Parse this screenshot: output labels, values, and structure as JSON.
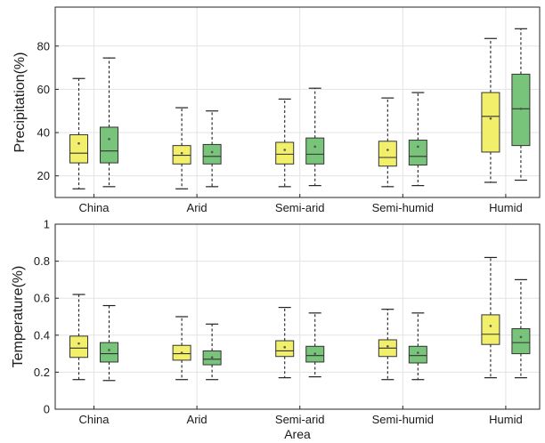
{
  "chart_data": [
    {
      "type": "box",
      "ylabel": "Precipitation(%)",
      "xlabel": "",
      "ylim": [
        10,
        98
      ],
      "yticks": [
        20,
        40,
        60,
        80
      ],
      "grid": true,
      "categories": [
        "China",
        "Arid",
        "Semi-arid",
        "Semi-humid",
        "Humid"
      ],
      "series": [
        {
          "color": "#f2ef6b",
          "boxes": [
            {
              "min": 14,
              "q1": 26,
              "median": 30.5,
              "q3": 39,
              "max": 65,
              "mean": 35
            },
            {
              "min": 14,
              "q1": 25.5,
              "median": 29.5,
              "q3": 34,
              "max": 51.5,
              "mean": 30.5
            },
            {
              "min": 15,
              "q1": 25.5,
              "median": 30,
              "q3": 35.5,
              "max": 55.5,
              "mean": 32
            },
            {
              "min": 15,
              "q1": 24.5,
              "median": 28.5,
              "q3": 36,
              "max": 56,
              "mean": 32
            },
            {
              "min": 17,
              "q1": 31,
              "median": 47.5,
              "q3": 58.5,
              "max": 83.5,
              "mean": 46.5
            }
          ]
        },
        {
          "color": "#78c47a",
          "boxes": [
            {
              "min": 15,
              "q1": 26,
              "median": 31.5,
              "q3": 42.5,
              "max": 74.5,
              "mean": 37
            },
            {
              "min": 15,
              "q1": 25.5,
              "median": 29,
              "q3": 34.5,
              "max": 50,
              "mean": 31
            },
            {
              "min": 15.5,
              "q1": 25.5,
              "median": 30,
              "q3": 37.5,
              "max": 60.5,
              "mean": 33.5
            },
            {
              "min": 15.5,
              "q1": 25,
              "median": 29,
              "q3": 36.5,
              "max": 58.5,
              "mean": 33.5
            },
            {
              "min": 18,
              "q1": 34,
              "median": 51,
              "q3": 67,
              "max": 88,
              "mean": 51
            }
          ]
        }
      ]
    },
    {
      "type": "box",
      "ylabel": "Temperature(%)",
      "xlabel": "Area",
      "ylim": [
        0,
        1
      ],
      "yticks": [
        0,
        0.2,
        0.4,
        0.6,
        0.8,
        1
      ],
      "grid": true,
      "categories": [
        "China",
        "Arid",
        "Semi-arid",
        "Semi-humid",
        "Humid"
      ],
      "series": [
        {
          "color": "#f2ef6b",
          "boxes": [
            {
              "min": 0.16,
              "q1": 0.28,
              "median": 0.33,
              "q3": 0.395,
              "max": 0.62,
              "mean": 0.355
            },
            {
              "min": 0.16,
              "q1": 0.265,
              "median": 0.3,
              "q3": 0.345,
              "max": 0.5,
              "mean": 0.305
            },
            {
              "min": 0.17,
              "q1": 0.285,
              "median": 0.315,
              "q3": 0.37,
              "max": 0.55,
              "mean": 0.335
            },
            {
              "min": 0.16,
              "q1": 0.285,
              "median": 0.33,
              "q3": 0.375,
              "max": 0.54,
              "mean": 0.34
            },
            {
              "min": 0.17,
              "q1": 0.35,
              "median": 0.405,
              "q3": 0.51,
              "max": 0.82,
              "mean": 0.45
            }
          ]
        },
        {
          "color": "#78c47a",
          "boxes": [
            {
              "min": 0.155,
              "q1": 0.255,
              "median": 0.3,
              "q3": 0.36,
              "max": 0.56,
              "mean": 0.32
            },
            {
              "min": 0.16,
              "q1": 0.24,
              "median": 0.27,
              "q3": 0.315,
              "max": 0.46,
              "mean": 0.28
            },
            {
              "min": 0.175,
              "q1": 0.255,
              "median": 0.29,
              "q3": 0.34,
              "max": 0.52,
              "mean": 0.3
            },
            {
              "min": 0.16,
              "q1": 0.25,
              "median": 0.29,
              "q3": 0.34,
              "max": 0.52,
              "mean": 0.305
            },
            {
              "min": 0.17,
              "q1": 0.3,
              "median": 0.36,
              "q3": 0.435,
              "max": 0.7,
              "mean": 0.39
            }
          ]
        }
      ]
    }
  ]
}
